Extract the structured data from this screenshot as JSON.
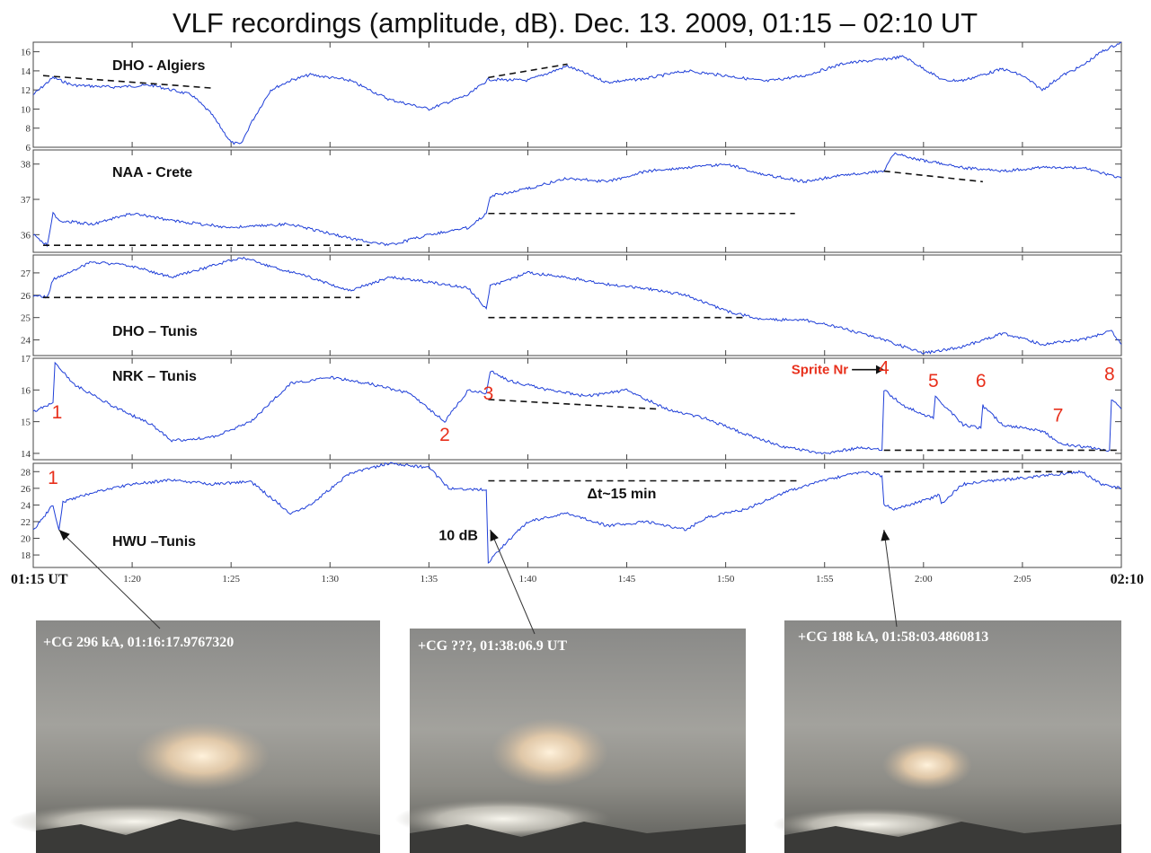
{
  "title": "VLF recordings (amplitude, dB). Dec. 13. 2009, 01:15 – 02:10 UT",
  "time_axis": {
    "start_label": "01:15 UT",
    "end_label": "02:10",
    "tick_labels": [
      "1:20",
      "1:25",
      "1:30",
      "1:35",
      "1:40",
      "1:45",
      "1:50",
      "1:55",
      "2:00",
      "2:05"
    ],
    "tick_minutes": [
      20,
      25,
      30,
      35,
      40,
      45,
      50,
      55,
      60,
      65
    ]
  },
  "colors": {
    "trace": "#1f3fd8",
    "annotation_red": "#e8301c",
    "dashed": "#111111"
  },
  "chart_data": [
    {
      "type": "line",
      "station": "DHO - Algiers",
      "xlim": [
        15,
        70
      ],
      "ylim": [
        6,
        17
      ],
      "yticks": [
        6,
        8,
        10,
        12,
        14,
        16
      ],
      "x": [
        15,
        16,
        17,
        19,
        21,
        23,
        24,
        25,
        25.5,
        26,
        27,
        28,
        29,
        31,
        33,
        35,
        37,
        38,
        40,
        42,
        44,
        46,
        48,
        50,
        52,
        54,
        56,
        58,
        59,
        61,
        62,
        64,
        65,
        66,
        67,
        68,
        69,
        70
      ],
      "y": [
        11.5,
        13.3,
        12.5,
        12.3,
        12.5,
        11.5,
        9.5,
        6.5,
        6.3,
        8.5,
        12.0,
        13.0,
        13.6,
        13.0,
        11.0,
        10.0,
        11.5,
        13.1,
        13.0,
        14.5,
        12.8,
        13.2,
        14.0,
        13.5,
        12.9,
        13.5,
        14.8,
        15.2,
        15.5,
        13.0,
        13.0,
        14.2,
        13.5,
        12.0,
        13.5,
        14.5,
        16.0,
        17.0
      ],
      "dashed_lines": [
        {
          "x": [
            15.5,
            24
          ],
          "y": [
            13.5,
            12.2
          ]
        },
        {
          "x": [
            38,
            42
          ],
          "y": [
            13.3,
            14.7
          ]
        }
      ]
    },
    {
      "type": "line",
      "station": "NAA - Crete",
      "xlim": [
        15,
        70
      ],
      "ylim": [
        35.5,
        38.4
      ],
      "yticks": [
        36,
        37,
        38
      ],
      "x": [
        15,
        15.7,
        16,
        16.3,
        18,
        20,
        22,
        25,
        28,
        31,
        33,
        35,
        37,
        37.9,
        38.1,
        40,
        42,
        44,
        46,
        48,
        50,
        52,
        54,
        56,
        58,
        58.5,
        60,
        62,
        64,
        66,
        68,
        70
      ],
      "y": [
        36.0,
        35.7,
        36.6,
        36.4,
        36.3,
        36.6,
        36.4,
        36.2,
        36.3,
        35.9,
        35.7,
        36.0,
        36.2,
        36.6,
        37.1,
        37.3,
        37.6,
        37.5,
        37.8,
        37.9,
        38.0,
        37.7,
        37.5,
        37.7,
        37.8,
        38.3,
        38.1,
        37.9,
        37.8,
        37.9,
        37.9,
        37.6
      ],
      "dashed_lines": [
        {
          "x": [
            15.5,
            32
          ],
          "y": [
            35.7,
            35.7
          ]
        },
        {
          "x": [
            38,
            53.5
          ],
          "y": [
            36.6,
            36.6
          ]
        },
        {
          "x": [
            58,
            63
          ],
          "y": [
            37.8,
            37.5
          ]
        }
      ]
    },
    {
      "type": "line",
      "station": "DHO – Tunis",
      "xlim": [
        15,
        70
      ],
      "ylim": [
        23.3,
        27.8
      ],
      "yticks": [
        24,
        25,
        26,
        27
      ],
      "x": [
        15,
        15.7,
        16,
        18,
        20,
        22,
        24,
        25.5,
        27,
        29,
        31,
        33,
        35,
        37,
        37.9,
        38.1,
        40,
        42,
        44,
        46,
        48,
        50,
        52,
        54,
        56,
        58,
        60,
        62,
        64,
        66,
        68,
        69.5,
        70
      ],
      "y": [
        26.0,
        25.9,
        26.7,
        27.5,
        27.3,
        26.8,
        27.3,
        27.7,
        27.3,
        26.8,
        26.2,
        26.8,
        26.6,
        26.3,
        25.4,
        26.4,
        27.0,
        26.8,
        26.5,
        26.3,
        26.0,
        25.3,
        24.9,
        24.9,
        24.5,
        24.0,
        23.4,
        23.7,
        24.3,
        23.8,
        24.0,
        24.4,
        23.8
      ],
      "dashed_lines": [
        {
          "x": [
            15.5,
            31.5
          ],
          "y": [
            25.9,
            25.9
          ]
        },
        {
          "x": [
            38,
            51
          ],
          "y": [
            25.0,
            25.0
          ]
        }
      ]
    },
    {
      "type": "line",
      "station": "NRK – Tunis",
      "xlim": [
        15,
        70
      ],
      "ylim": [
        13.8,
        17
      ],
      "yticks": [
        14,
        15,
        16,
        17
      ],
      "x": [
        15,
        16,
        16.1,
        17,
        19,
        21,
        22,
        24,
        26,
        28,
        30,
        32,
        34,
        35.8,
        37,
        37.9,
        38.1,
        39,
        41,
        43,
        45,
        47,
        49,
        51,
        53,
        55,
        57,
        57.9,
        58,
        59,
        60.5,
        60.6,
        62,
        62.9,
        63,
        64,
        66,
        67,
        69.4,
        69.5,
        70
      ],
      "y": [
        15.3,
        15.6,
        16.9,
        16.2,
        15.5,
        14.9,
        14.4,
        14.5,
        15.0,
        16.2,
        16.4,
        16.2,
        15.9,
        15.0,
        16.0,
        15.9,
        16.6,
        16.3,
        16.0,
        15.8,
        16.0,
        15.4,
        15.1,
        14.6,
        14.2,
        14.0,
        14.2,
        14.1,
        16.0,
        15.5,
        15.1,
        15.8,
        14.9,
        14.8,
        15.5,
        14.9,
        14.7,
        14.3,
        14.1,
        15.7,
        15.4
      ],
      "dashed_lines": [
        {
          "x": [
            38,
            46.5
          ],
          "y": [
            15.7,
            15.4
          ]
        },
        {
          "x": [
            58,
            70
          ],
          "y": [
            14.1,
            14.1
          ]
        }
      ],
      "annotations": [
        "1",
        "2",
        "3",
        "Sprite Nr",
        "4",
        "5",
        "6",
        "7",
        "8"
      ],
      "annotation_x": [
        16.2,
        35.8,
        38.0,
        56.2,
        58.0,
        60.5,
        62.9,
        66.8,
        69.4
      ],
      "annotation_y": [
        15.1,
        14.4,
        15.7,
        16.5,
        16.5,
        16.1,
        16.1,
        15.0,
        16.3
      ]
    },
    {
      "type": "line",
      "station": "HWU –Tunis",
      "xlim": [
        15,
        70
      ],
      "ylim": [
        16.5,
        29
      ],
      "yticks": [
        18,
        20,
        22,
        24,
        26,
        28
      ],
      "x": [
        15,
        16,
        16.3,
        16.5,
        18,
        20,
        22,
        24,
        26,
        28,
        29,
        31,
        33,
        35,
        36,
        37.9,
        38,
        38.5,
        40,
        42,
        44,
        46,
        48,
        49,
        51,
        53,
        55,
        57,
        57.9,
        58,
        58.5,
        60,
        60.8,
        60.9,
        62,
        64,
        66,
        68,
        69,
        70
      ],
      "y": [
        21.0,
        24.0,
        21.0,
        24.3,
        25.5,
        26.5,
        27.0,
        26.5,
        26.8,
        23.0,
        24.0,
        27.8,
        29.0,
        28.5,
        26.0,
        25.8,
        17.0,
        18.5,
        22.0,
        23.0,
        21.5,
        22.0,
        21.0,
        22.5,
        23.5,
        25.5,
        27.0,
        28.0,
        27.5,
        24.0,
        23.5,
        24.5,
        25.2,
        24.2,
        26.5,
        27.0,
        27.5,
        28.0,
        26.5,
        26.0
      ],
      "dashed_lines": [
        {
          "x": [
            38,
            53.8
          ],
          "y": [
            26.9,
            26.9
          ]
        },
        {
          "x": [
            58,
            67.5
          ],
          "y": [
            28.0,
            28.0
          ]
        }
      ],
      "annotations": [
        "1",
        "Δt~15 min",
        "10 dB"
      ],
      "annotation_x": [
        16.0,
        43.0,
        35.5
      ],
      "annotation_y": [
        26.5,
        24.8,
        19.8
      ]
    }
  ],
  "photos": [
    {
      "caption": "+CG 296 kA, 01:16:17.9767320",
      "arrow_to_minute": 16.3
    },
    {
      "caption": "+CG ???, 01:38:06.9 UT",
      "arrow_to_minute": 38.1
    },
    {
      "caption": "+CG 188 kA, 01:58:03.4860813",
      "arrow_to_minute": 58.0
    }
  ]
}
